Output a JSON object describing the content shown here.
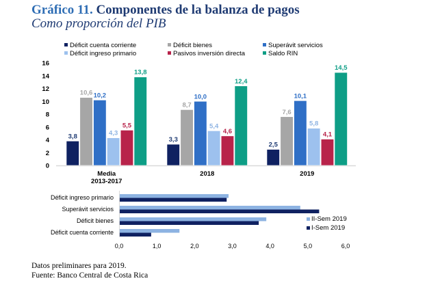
{
  "header": {
    "title_number": "Gráfico 11.",
    "title_text": "Componentes de la balanza de pagos",
    "subtitle": "Como proporción del PIB"
  },
  "footer": {
    "note": "Datos preliminares para 2019.",
    "source": "Fuente: Banco Central de Costa Rica"
  },
  "chart_data": [
    {
      "type": "bar",
      "title": "",
      "xlabel": "",
      "ylabel": "",
      "ylim": [
        0,
        16
      ],
      "yticks": [
        "0",
        "2",
        "4",
        "6",
        "8",
        "10",
        "12",
        "14",
        "16"
      ],
      "categories": [
        "Media\n2013-2017",
        "2018",
        "2019"
      ],
      "category_labels": [
        [
          "Media",
          "2013-2017"
        ],
        [
          "2018"
        ],
        [
          "2019"
        ]
      ],
      "legend_position": "top",
      "grid": false,
      "series": [
        {
          "name": "Déficit cuenta corriente",
          "color": "#0f2161",
          "label_color": "#1f3b73",
          "values": [
            3.8,
            3.3,
            2.5
          ],
          "labels": [
            "3,8",
            "3,3",
            "2,5"
          ]
        },
        {
          "name": "Déficit bienes",
          "color": "#a6a6a6",
          "label_color": "#a6a6a6",
          "values": [
            10.6,
            8.7,
            7.6
          ],
          "labels": [
            "10,6",
            "8,7",
            "7,6"
          ]
        },
        {
          "name": "Superávit servicios",
          "color": "#2f6fc6",
          "label_color": "#2f6fc6",
          "values": [
            10.2,
            10.0,
            10.1
          ],
          "labels": [
            "10,2",
            "10,0",
            "10,1"
          ]
        },
        {
          "name": "Déficit ingreso primario",
          "color": "#9dc1ee",
          "label_color": "#8fb4e3",
          "values": [
            4.3,
            5.4,
            5.8
          ],
          "labels": [
            "4,3",
            "5,4",
            "5,8"
          ]
        },
        {
          "name": "Pasivos inversión directa",
          "color": "#b8234a",
          "label_color": "#b8234a",
          "values": [
            5.5,
            4.6,
            4.1
          ],
          "labels": [
            "5,5",
            "4,6",
            "4,1"
          ]
        },
        {
          "name": "Saldo RIN",
          "color": "#0e9e86",
          "label_color": "#0e9e86",
          "values": [
            13.8,
            12.4,
            14.5
          ],
          "labels": [
            "13,8",
            "12,4",
            "14,5"
          ]
        }
      ]
    },
    {
      "type": "bar",
      "orientation": "horizontal",
      "title": "",
      "xlabel": "",
      "ylabel": "",
      "xlim": [
        0,
        6
      ],
      "xticks": [
        "0,0",
        "1,0",
        "2,0",
        "3,0",
        "4,0",
        "5,0",
        "6,0"
      ],
      "categories": [
        "Déficit ingreso primario",
        "Superávit servicios",
        "Déficit bienes",
        "Déficit cuenta corriente"
      ],
      "legend_position": "bottom-right",
      "grid": false,
      "series": [
        {
          "name": "II-Sem 2019",
          "color": "#8db3e2",
          "values": [
            2.9,
            4.8,
            3.9,
            1.6
          ]
        },
        {
          "name": "I-Sem 2019",
          "color": "#0f2161",
          "values": [
            2.85,
            5.3,
            3.7,
            0.85
          ]
        }
      ]
    }
  ]
}
